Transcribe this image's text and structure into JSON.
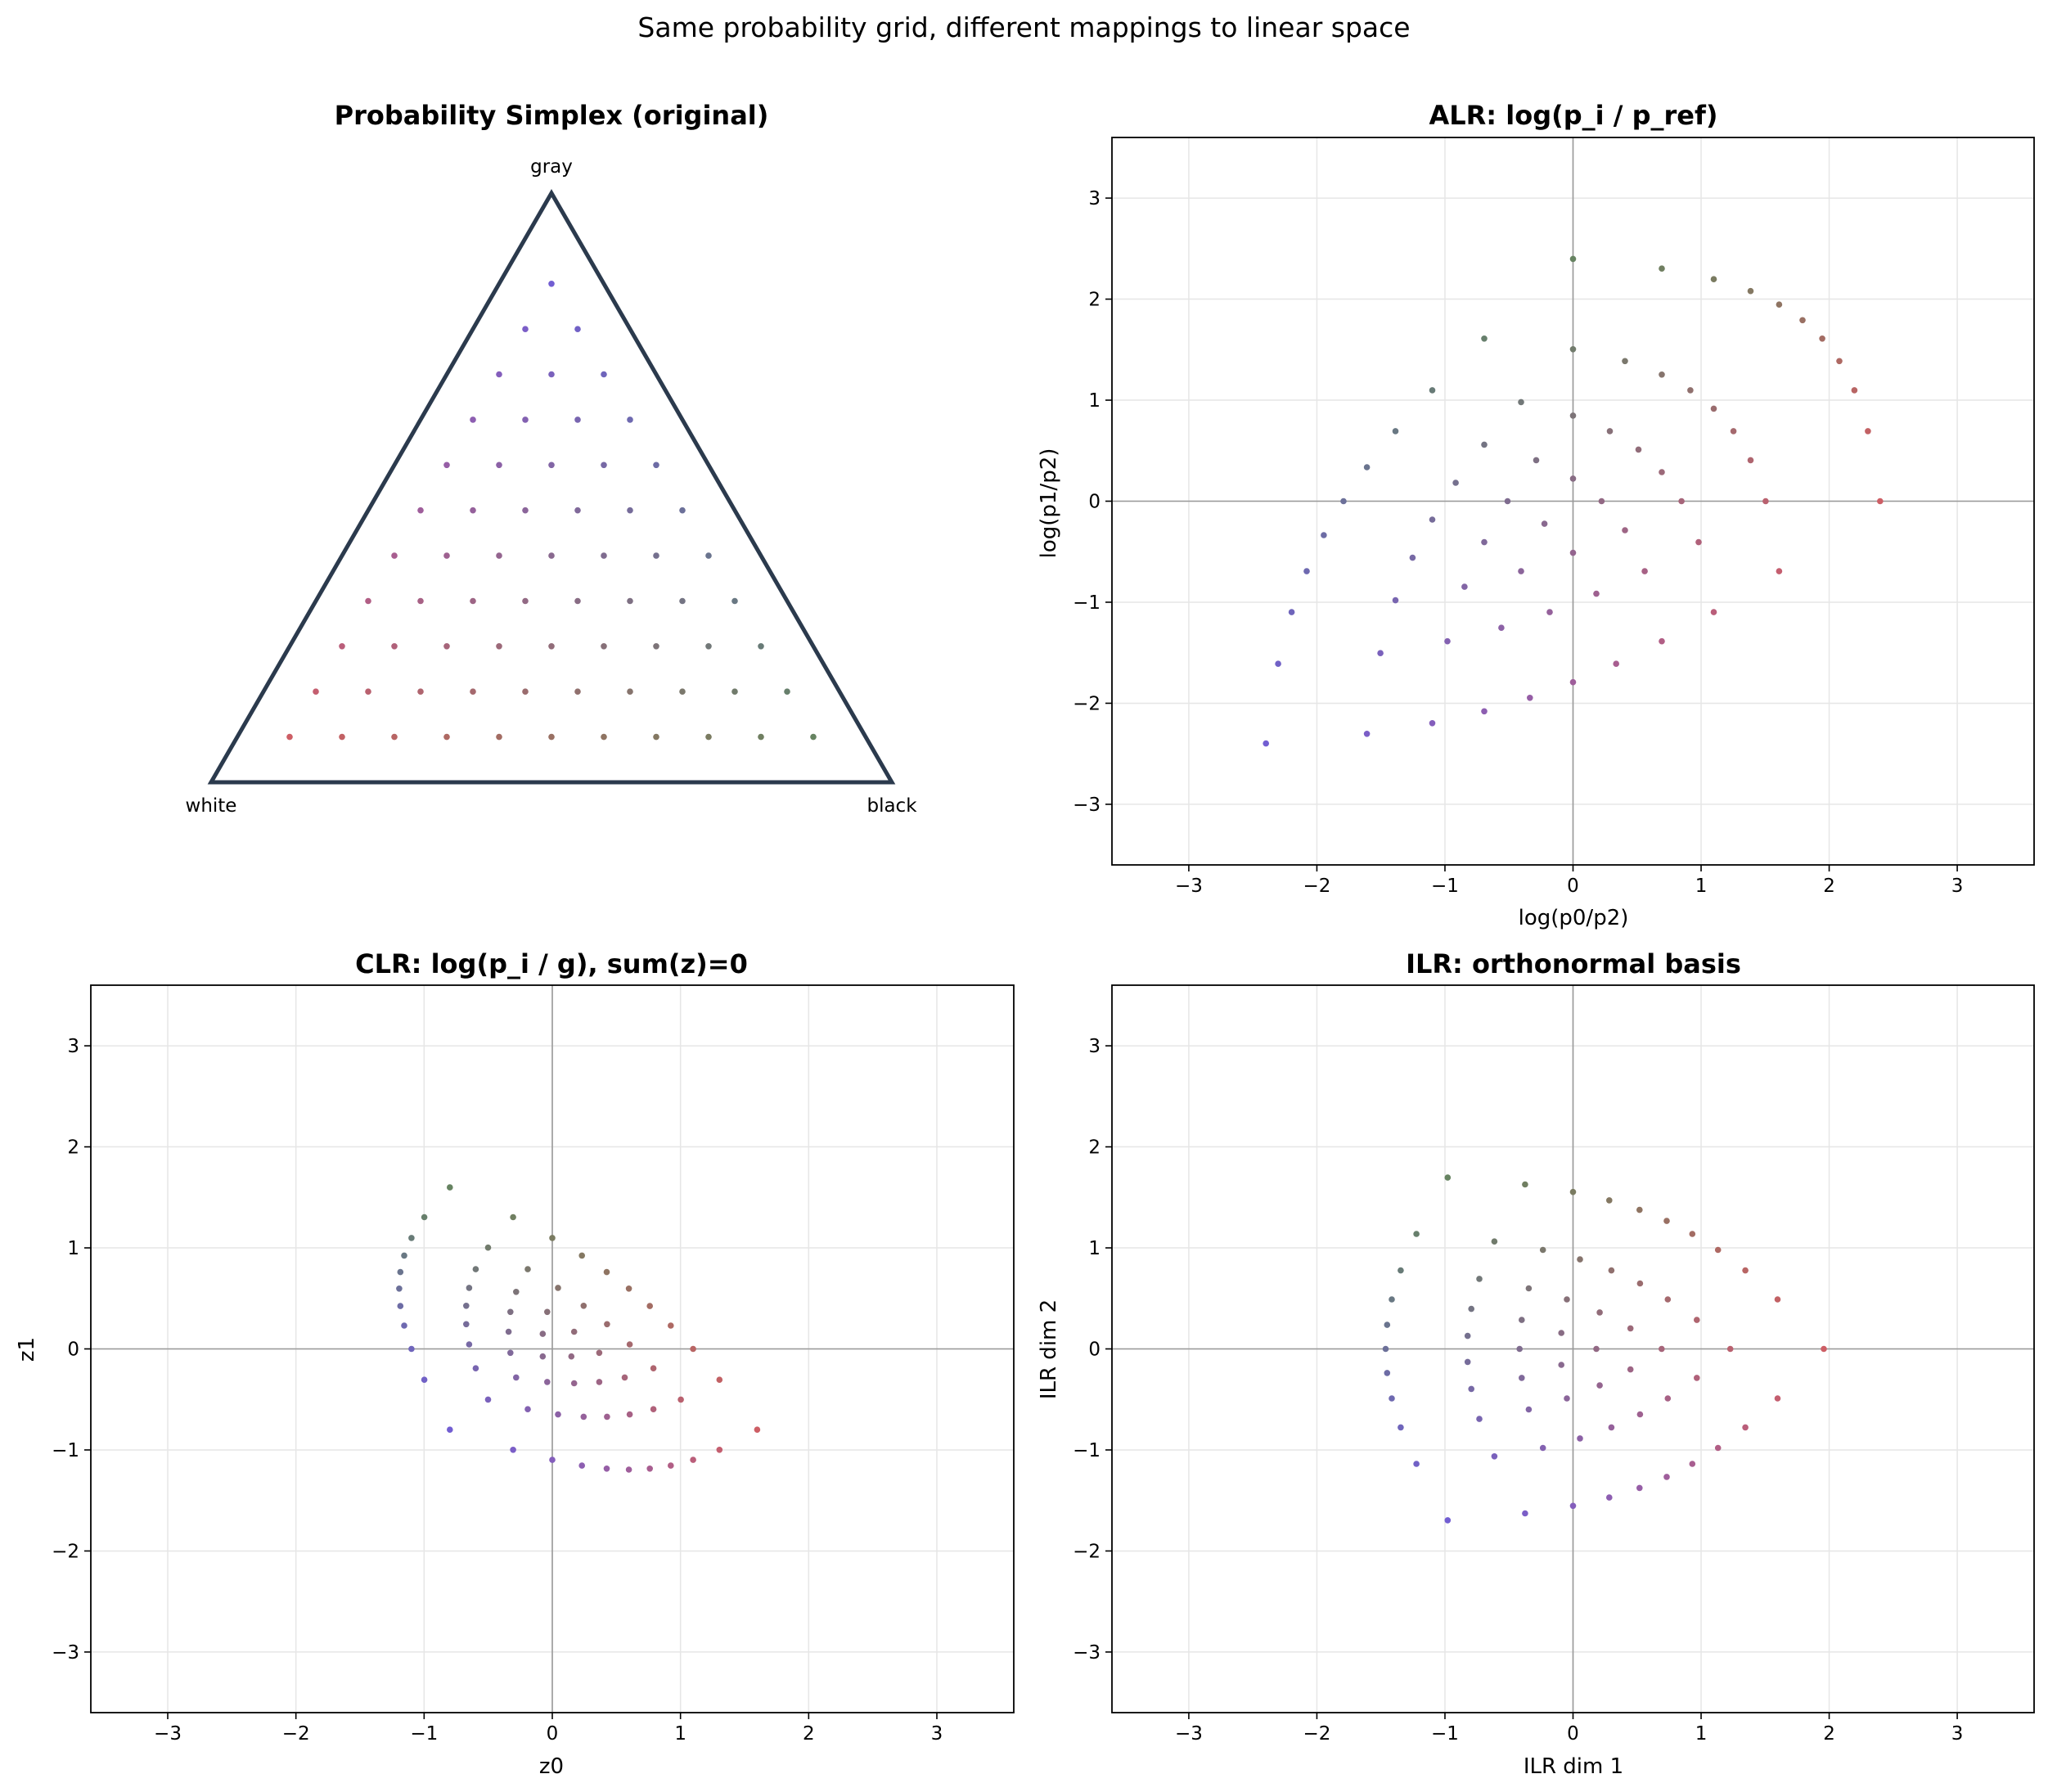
{
  "suptitle": "Same probability grid, different mappings to linear space",
  "chart_data": [
    {
      "type": "scatter",
      "panel": "simplex",
      "title": "Probability Simplex (original)",
      "xlabel": "",
      "ylabel": "",
      "vertex_labels": {
        "top": "gray",
        "left": "white",
        "right": "black"
      },
      "grid_levels": 13,
      "note_points": "barycentric grid (i, j, k) with i + j + k = 13, i, j, k >= 1; color = mixture of red (white weight), green (black weight), blue (gray weight)"
    },
    {
      "type": "scatter",
      "panel": "alr",
      "title": "ALR:  log(p_i / p_ref)",
      "xlabel": "log(p0/p2)",
      "ylabel": "log(p1/p2)",
      "xlim": [
        -3.6,
        3.6
      ],
      "ylim": [
        -3.6,
        3.6
      ],
      "xticks": [
        -3,
        -2,
        -1,
        0,
        1,
        2,
        3
      ],
      "yticks": [
        -3,
        -2,
        -1,
        0,
        1,
        2,
        3
      ],
      "xtick_labels": [
        "−3",
        "−2",
        "−1",
        "0",
        "1",
        "2",
        "3"
      ],
      "ytick_labels": [
        "−3",
        "−2",
        "−1",
        "0",
        "1",
        "2",
        "3"
      ],
      "grid": true
    },
    {
      "type": "scatter",
      "panel": "clr",
      "title": "CLR:  log(p_i / g),  sum(z)=0",
      "xlabel": "z0",
      "ylabel": "z1",
      "xlim": [
        -3.6,
        3.6
      ],
      "ylim": [
        -3.6,
        3.6
      ],
      "xticks": [
        -3,
        -2,
        -1,
        0,
        1,
        2,
        3
      ],
      "yticks": [
        -3,
        -2,
        -1,
        0,
        1,
        2,
        3
      ],
      "xtick_labels": [
        "−3",
        "−2",
        "−1",
        "0",
        "1",
        "2",
        "3"
      ],
      "ytick_labels": [
        "−3",
        "−2",
        "−1",
        "0",
        "1",
        "2",
        "3"
      ],
      "grid": true
    },
    {
      "type": "scatter",
      "panel": "ilr",
      "title": "ILR:  orthonormal basis",
      "xlabel": "ILR dim 1",
      "ylabel": "ILR dim 2",
      "xlim": [
        -3.6,
        3.6
      ],
      "ylim": [
        -3.6,
        3.6
      ],
      "xticks": [
        -3,
        -2,
        -1,
        0,
        1,
        2,
        3
      ],
      "yticks": [
        -3,
        -2,
        -1,
        0,
        1,
        2,
        3
      ],
      "xtick_labels": [
        "−3",
        "−2",
        "−1",
        "0",
        "1",
        "2",
        "3"
      ],
      "ytick_labels": [
        "−3",
        "−2",
        "−1",
        "0",
        "1",
        "2",
        "3"
      ],
      "grid": true
    }
  ],
  "colors": {
    "simplex_edge": "#2b3a4d",
    "white_point": "#e05a5a",
    "black_point": "#5a8a55",
    "gray_point": "#6a5ae8",
    "grid": "#e6e6e6",
    "zero_line": "#999999",
    "axes": "#000000"
  }
}
